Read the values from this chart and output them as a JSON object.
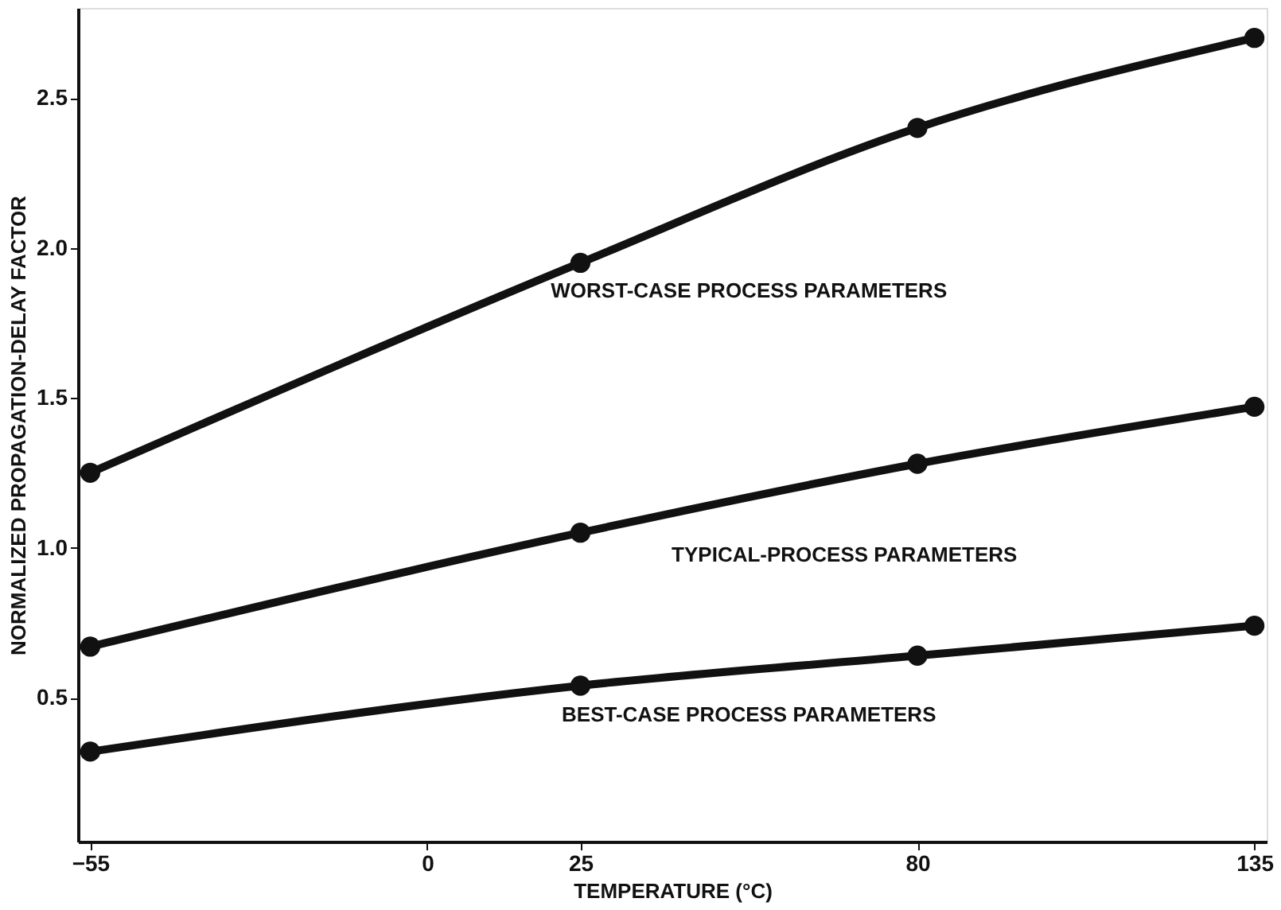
{
  "chart_data": {
    "type": "line",
    "xlabel": "TEMPERATURE (°C)",
    "ylabel": "NORMALIZED PROPAGATION-DELAY FACTOR",
    "x": [
      -55,
      25,
      80,
      135
    ],
    "series": [
      {
        "name": "WORST-CASE PROCESS PARAMETERS",
        "color": "#111111",
        "values": [
          1.25,
          1.95,
          2.4,
          2.7
        ]
      },
      {
        "name": "TYPICAL-PROCESS PARAMETERS",
        "color": "#111111",
        "values": [
          0.67,
          1.05,
          1.28,
          1.47
        ]
      },
      {
        "name": "BEST-CASE PROCESS PARAMETERS",
        "color": "#111111",
        "values": [
          0.32,
          0.54,
          0.64,
          0.74
        ]
      }
    ],
    "xlim": [
      -57,
      137
    ],
    "xticks": [
      -55,
      0,
      25,
      80,
      135
    ],
    "ylim": [
      0.02,
      2.8
    ],
    "yticks": [
      0.5,
      {
        "value": 1,
        "label": "1.0"
      },
      1.5,
      {
        "value": 2,
        "label": "2.0"
      },
      2.5
    ],
    "grid": false,
    "legend": false,
    "marker": "circle",
    "line_style": "solid"
  }
}
